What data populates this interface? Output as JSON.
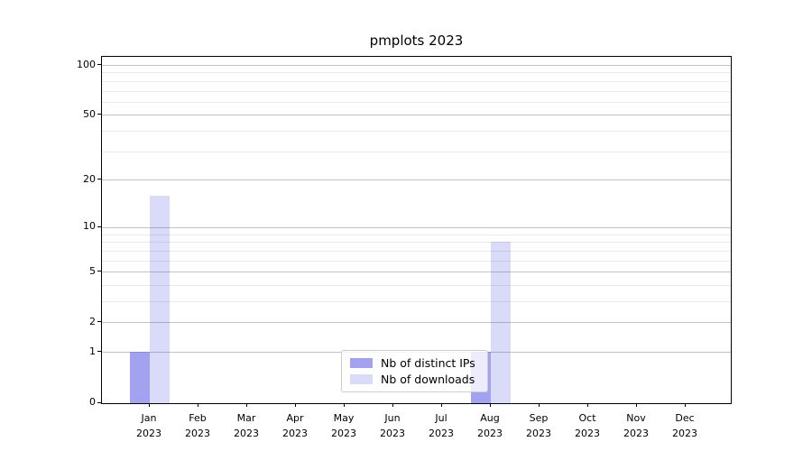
{
  "title": "pmplots 2023",
  "chart_data": {
    "type": "bar",
    "title": "pmplots 2023",
    "categories": [
      "Jan",
      "Feb",
      "Mar",
      "Apr",
      "May",
      "Jun",
      "Jul",
      "Aug",
      "Sep",
      "Oct",
      "Nov",
      "Dec"
    ],
    "x_year_label": "2023",
    "series": [
      {
        "name": "Nb of distinct IPs",
        "color": "rgba(100,100,230,0.60)",
        "values": [
          1,
          0,
          0,
          0,
          0,
          0,
          0,
          1,
          0,
          0,
          0,
          0
        ]
      },
      {
        "name": "Nb of downloads",
        "color": "rgba(60,60,225,0.19)",
        "values": [
          16,
          0,
          0,
          0,
          0,
          0,
          0,
          8,
          0,
          0,
          0,
          0
        ]
      }
    ],
    "yscale": "log1p",
    "ylim": [
      0,
      113
    ],
    "y_major_ticks": [
      0,
      1,
      2,
      5,
      10,
      20,
      50,
      100
    ],
    "y_minor_gridlines": [
      3,
      4,
      6,
      7,
      8,
      9,
      30,
      40,
      60,
      70,
      80,
      90
    ],
    "grid": true,
    "legend_position": "lower center",
    "xlabel": "",
    "ylabel": ""
  },
  "colors": {
    "grid_major": "#c3c3c3",
    "grid_minor": "#e9e9e9",
    "axis": "#000000",
    "legend_border": "#cccccc"
  }
}
